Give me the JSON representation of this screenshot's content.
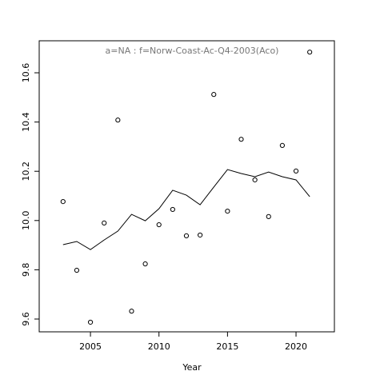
{
  "chart_data": {
    "type": "scatter",
    "title": "a=NA  :  f=Norw-Coast-Ac-Q4-2003(Aco)",
    "x_label": "Year",
    "x": [
      2003,
      2004,
      2005,
      2006,
      2007,
      2008,
      2009,
      2010,
      2011,
      2012,
      2013,
      2014,
      2015,
      2016,
      2017,
      2018,
      2019,
      2020,
      2021
    ],
    "series": [
      {
        "style": "points",
        "color": "#000000",
        "values": [
          10.077,
          9.798,
          9.587,
          9.99,
          10.408,
          9.632,
          9.824,
          9.983,
          10.045,
          9.938,
          9.941,
          10.512,
          10.038,
          10.33,
          10.165,
          10.016,
          10.305,
          10.201,
          10.684
        ]
      },
      {
        "style": "line",
        "color": "#000000",
        "values": [
          9.902,
          9.915,
          9.882,
          9.921,
          9.957,
          10.025,
          9.999,
          10.048,
          10.123,
          10.103,
          10.064,
          10.136,
          10.207,
          10.191,
          10.178,
          10.197,
          10.178,
          10.165,
          10.097
        ]
      }
    ],
    "xlim": [
      2001.26,
      2022.8
    ],
    "xticks": [
      2005,
      2010,
      2015,
      2020
    ],
    "ylim": [
      9.548,
      10.73
    ],
    "yticks": [
      {
        "value": 9.6,
        "label": "9.6"
      },
      {
        "value": 9.8,
        "label": "9.8"
      },
      {
        "value": 10.0,
        "label": "10.0"
      },
      {
        "value": 10.2,
        "label": "10.2"
      },
      {
        "value": 10.4,
        "label": "10.4"
      },
      {
        "value": 10.6,
        "label": "10.6"
      }
    ]
  }
}
